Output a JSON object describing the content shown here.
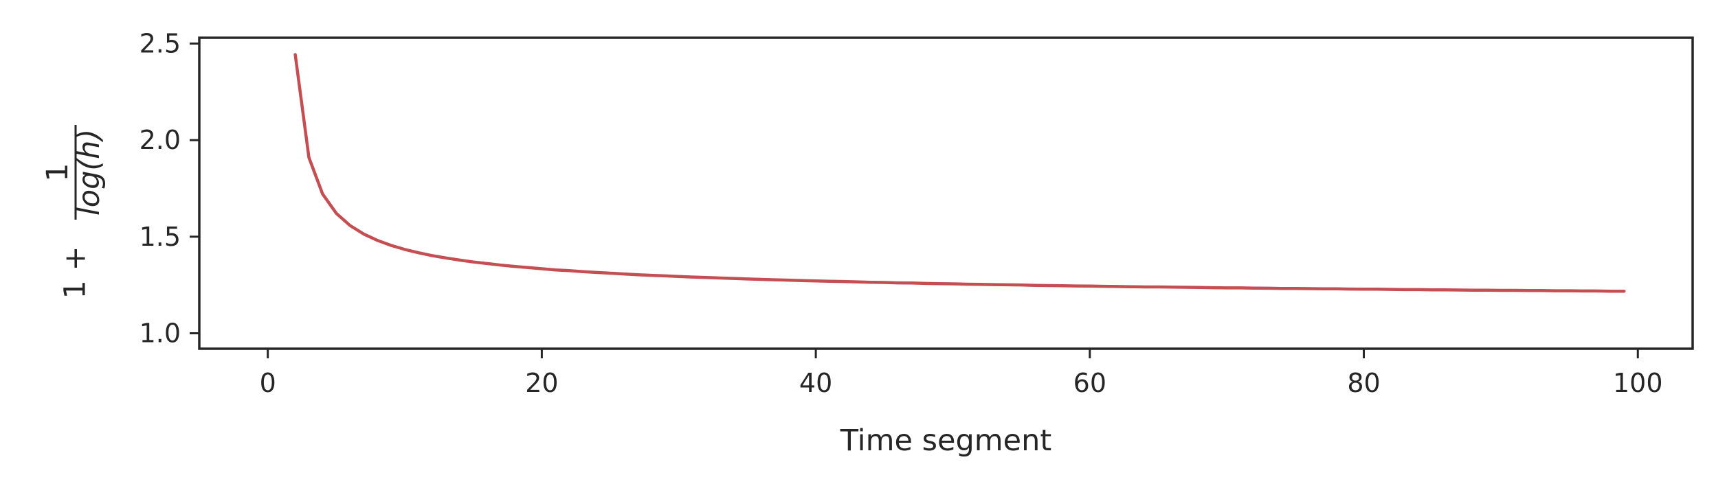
{
  "chart_data": {
    "type": "line",
    "title": "",
    "xlabel": "Time segment",
    "ylabel": {
      "prefix": "1 +",
      "numerator": "1",
      "denominator": "log(h)"
    },
    "xlim": [
      -5,
      104
    ],
    "ylim": [
      0.92,
      2.53
    ],
    "xticks": [
      0,
      20,
      40,
      60,
      80,
      100
    ],
    "xtick_labels": [
      "0",
      "20",
      "40",
      "60",
      "80",
      "100"
    ],
    "yticks": [
      1.0,
      1.5,
      2.0,
      2.5
    ],
    "ytick_labels": [
      "1.0",
      "1.5",
      "2.0",
      "2.5"
    ],
    "grid": false,
    "series": [
      {
        "color": "#c44e52",
        "x": [
          2,
          3,
          4,
          5,
          6,
          7,
          8,
          9,
          10,
          11,
          12,
          13,
          14,
          15,
          16,
          17,
          18,
          19,
          20,
          21,
          22,
          23,
          24,
          25,
          26,
          27,
          28,
          29,
          30,
          31,
          32,
          33,
          34,
          35,
          36,
          37,
          38,
          39,
          40,
          41,
          42,
          43,
          44,
          45,
          46,
          47,
          48,
          49,
          50,
          51,
          52,
          53,
          54,
          55,
          56,
          57,
          58,
          59,
          60,
          61,
          62,
          63,
          64,
          65,
          66,
          67,
          68,
          69,
          70,
          71,
          72,
          73,
          74,
          75,
          76,
          77,
          78,
          79,
          80,
          81,
          82,
          83,
          84,
          85,
          86,
          87,
          88,
          89,
          90,
          91,
          92,
          93,
          94,
          95,
          96,
          97,
          98,
          99
        ],
        "y": [
          2.443,
          1.91,
          1.721,
          1.621,
          1.558,
          1.514,
          1.481,
          1.455,
          1.434,
          1.417,
          1.402,
          1.39,
          1.379,
          1.369,
          1.361,
          1.353,
          1.346,
          1.34,
          1.334,
          1.328,
          1.324,
          1.319,
          1.315,
          1.311,
          1.307,
          1.303,
          1.3,
          1.297,
          1.294,
          1.291,
          1.289,
          1.286,
          1.284,
          1.281,
          1.279,
          1.277,
          1.275,
          1.273,
          1.271,
          1.269,
          1.268,
          1.266,
          1.264,
          1.263,
          1.261,
          1.26,
          1.258,
          1.257,
          1.256,
          1.254,
          1.253,
          1.252,
          1.251,
          1.25,
          1.248,
          1.247,
          1.246,
          1.245,
          1.244,
          1.243,
          1.242,
          1.241,
          1.24,
          1.24,
          1.239,
          1.238,
          1.237,
          1.236,
          1.235,
          1.235,
          1.234,
          1.233,
          1.232,
          1.232,
          1.231,
          1.23,
          1.23,
          1.229,
          1.228,
          1.228,
          1.227,
          1.226,
          1.226,
          1.225,
          1.225,
          1.224,
          1.223,
          1.223,
          1.222,
          1.222,
          1.221,
          1.221,
          1.22,
          1.22,
          1.219,
          1.219,
          1.218,
          1.218
        ]
      }
    ]
  }
}
